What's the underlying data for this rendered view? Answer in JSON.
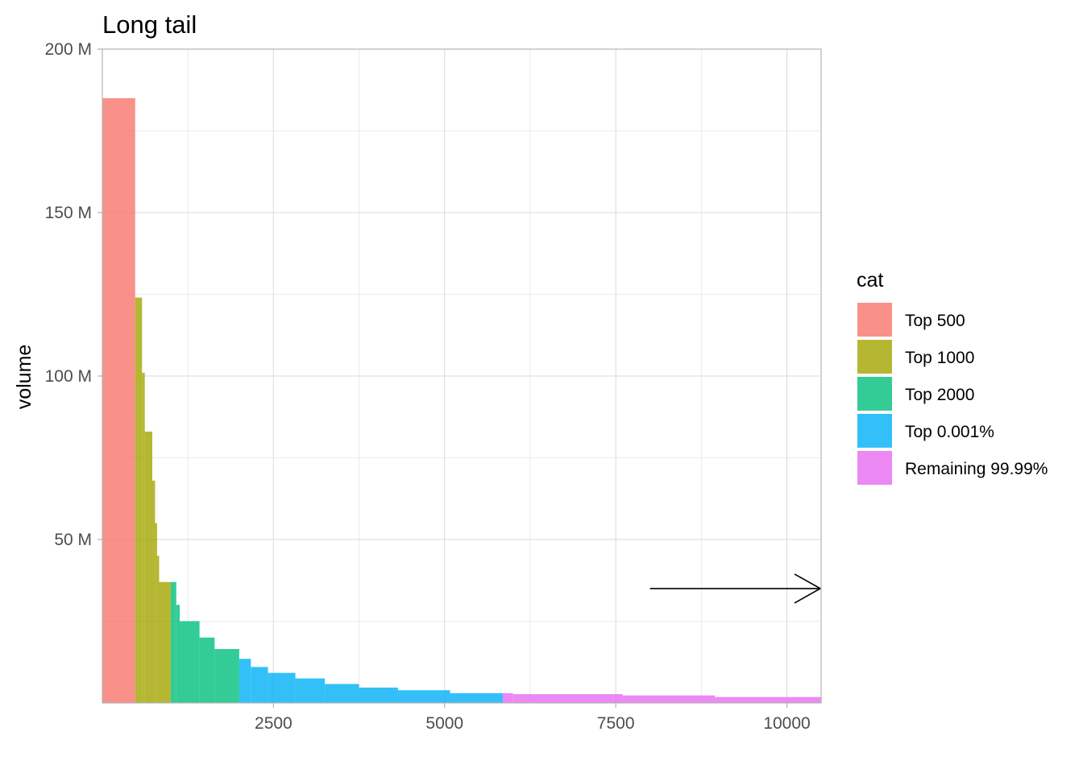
{
  "chart_data": {
    "type": "bar",
    "title": "Long tail",
    "xlabel": "",
    "ylabel": "volume",
    "xlim": [
      0,
      10500
    ],
    "ylim": [
      0,
      200000000
    ],
    "x_ticks": [
      {
        "value": 2500,
        "label": "2500"
      },
      {
        "value": 5000,
        "label": "5000"
      },
      {
        "value": 7500,
        "label": "7500"
      },
      {
        "value": 10000,
        "label": "10000"
      }
    ],
    "y_ticks": [
      {
        "value": 50000000,
        "label": "50 M"
      },
      {
        "value": 100000000,
        "label": "100 M"
      },
      {
        "value": 150000000,
        "label": "150 M"
      },
      {
        "value": 200000000,
        "label": "200 M"
      }
    ],
    "grid": true,
    "legend": {
      "title": "cat",
      "position": "right",
      "entries": [
        {
          "label": "Top 500",
          "color": "#f8766d"
        },
        {
          "label": "Top 1000",
          "color": "#a3a500"
        },
        {
          "label": "Top 2000",
          "color": "#00bf7d"
        },
        {
          "label": "Top 0.001%",
          "color": "#00b0f6"
        },
        {
          "label": "Remaining 99.99%",
          "color": "#e76bf3"
        }
      ]
    },
    "series": [
      {
        "name": "Top 500",
        "bars": [
          {
            "x0": 0,
            "x1": 480,
            "value": 185000000
          }
        ]
      },
      {
        "name": "Top 1000",
        "bars": [
          {
            "x0": 480,
            "x1": 580,
            "value": 124000000
          },
          {
            "x0": 580,
            "x1": 620,
            "value": 101000000
          },
          {
            "x0": 620,
            "x1": 730,
            "value": 83000000
          },
          {
            "x0": 730,
            "x1": 770,
            "value": 68000000
          },
          {
            "x0": 770,
            "x1": 800,
            "value": 55000000
          },
          {
            "x0": 800,
            "x1": 830,
            "value": 45000000
          },
          {
            "x0": 830,
            "x1": 1000,
            "value": 37000000
          }
        ]
      },
      {
        "name": "Top 2000",
        "bars": [
          {
            "x0": 1000,
            "x1": 1080,
            "value": 37000000
          },
          {
            "x0": 1080,
            "x1": 1130,
            "value": 30000000
          },
          {
            "x0": 1130,
            "x1": 1420,
            "value": 25000000
          },
          {
            "x0": 1420,
            "x1": 1640,
            "value": 20000000
          },
          {
            "x0": 1640,
            "x1": 2000,
            "value": 16500000
          }
        ]
      },
      {
        "name": "Top 0.001%",
        "bars": [
          {
            "x0": 2000,
            "x1": 2170,
            "value": 13500000
          },
          {
            "x0": 2170,
            "x1": 2420,
            "value": 11000000
          },
          {
            "x0": 2420,
            "x1": 2820,
            "value": 9200000
          },
          {
            "x0": 2820,
            "x1": 3250,
            "value": 7500000
          },
          {
            "x0": 3250,
            "x1": 3750,
            "value": 5800000
          },
          {
            "x0": 3750,
            "x1": 4320,
            "value": 4700000
          },
          {
            "x0": 4320,
            "x1": 5080,
            "value": 3900000
          },
          {
            "x0": 5080,
            "x1": 5850,
            "value": 3000000
          }
        ]
      },
      {
        "name": "Remaining 99.99%",
        "bars": [
          {
            "x0": 5850,
            "x1": 6000,
            "value": 3000000
          },
          {
            "x0": 6000,
            "x1": 7600,
            "value": 2700000
          },
          {
            "x0": 7600,
            "x1": 8950,
            "value": 2300000
          },
          {
            "x0": 8950,
            "x1": 10500,
            "value": 1800000
          }
        ]
      }
    ],
    "annotations": [
      {
        "type": "arrow",
        "x0": 8000,
        "x1": 10500,
        "y": 35000000,
        "direction": "right"
      }
    ]
  }
}
